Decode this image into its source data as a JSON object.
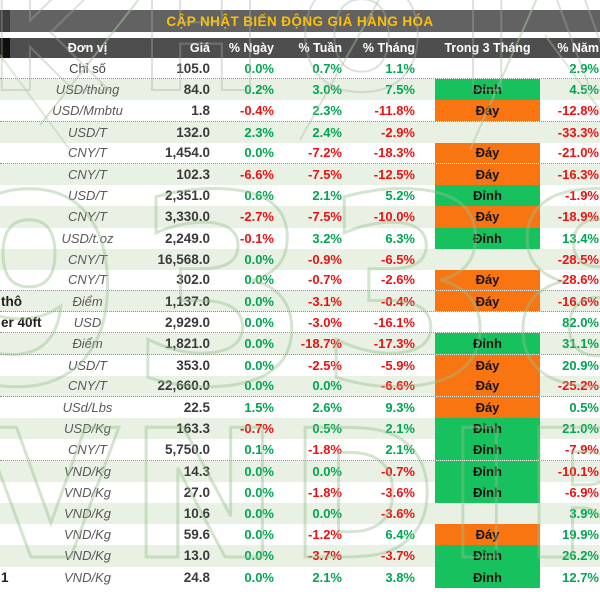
{
  "title": "CẬP NHẬT BIẾN ĐỘNG GIÁ HÀNG HÓA",
  "watermark": {
    "top": "KHOIV2",
    "middle": "933852",
    "bottom": "VNDIREC"
  },
  "colors": {
    "title_text": "#ffc000",
    "title_bg": "#626262",
    "header_bg": "#4e4e4e",
    "stripe_bg": "#e9f1e4",
    "positive": "#00a651",
    "negative": "#ee1111",
    "peak_bg": "#17c25e",
    "bottom_bg": "#f87512"
  },
  "chart_data": {
    "type": "table",
    "title": "CẬP NHẬT BIẾN ĐỘNG GIÁ HÀNG HÓA",
    "columns": [
      "Đơn vị",
      "Giá",
      "% Ngày",
      "% Tuần",
      "% Tháng",
      "Trong 3 Tháng",
      "% Năm"
    ],
    "signal_values": {
      "peak": "Đỉnh",
      "bottom": "Đáy"
    },
    "rows": [
      {
        "name": "",
        "unit": "Chỉ số",
        "price": "105.0",
        "day": "0.0%",
        "week": "0.7%",
        "month": "1.1%",
        "signal": "",
        "year": "2.9%",
        "group_end": true
      },
      {
        "name": "",
        "unit": "USD/thùng",
        "price": "84.0",
        "day": "0.2%",
        "week": "3.0%",
        "month": "7.5%",
        "signal": "Đỉnh",
        "year": "4.5%",
        "group_end": false
      },
      {
        "name": "",
        "unit": "USD/Mmbtu",
        "price": "1.8",
        "day": "-0.4%",
        "week": "2.3%",
        "month": "-11.8%",
        "signal": "Đáy",
        "year": "-12.8%",
        "group_end": true
      },
      {
        "name": "",
        "unit": "USD/T",
        "price": "132.0",
        "day": "2.3%",
        "week": "2.4%",
        "month": "-2.9%",
        "signal": "",
        "year": "-33.3%",
        "group_end": false
      },
      {
        "name": "",
        "unit": "CNY/T",
        "price": "1,454.0",
        "day": "0.0%",
        "week": "-7.2%",
        "month": "-18.3%",
        "signal": "Đáy",
        "year": "-21.0%",
        "group_end": true
      },
      {
        "name": "",
        "unit": "CNY/T",
        "price": "102.3",
        "day": "-6.6%",
        "week": "-7.5%",
        "month": "-12.5%",
        "signal": "Đáy",
        "year": "-16.3%",
        "group_end": false
      },
      {
        "name": "",
        "unit": "USD/T",
        "price": "2,351.0",
        "day": "0.6%",
        "week": "2.1%",
        "month": "5.2%",
        "signal": "Đỉnh",
        "year": "-1.9%",
        "group_end": false
      },
      {
        "name": "",
        "unit": "CNY/T",
        "price": "3,330.0",
        "day": "-2.7%",
        "week": "-7.5%",
        "month": "-10.0%",
        "signal": "Đáy",
        "year": "-18.9%",
        "group_end": false
      },
      {
        "name": "",
        "unit": "USD/t.oz",
        "price": "2,249.0",
        "day": "-0.1%",
        "week": "3.2%",
        "month": "6.3%",
        "signal": "Đỉnh",
        "year": "13.4%",
        "group_end": false
      },
      {
        "name": "",
        "unit": "CNY/T",
        "price": "16,568.0",
        "day": "0.0%",
        "week": "-0.9%",
        "month": "-6.5%",
        "signal": "",
        "year": "-28.5%",
        "group_end": false
      },
      {
        "name": "",
        "unit": "CNY/T",
        "price": "302.0",
        "day": "0.0%",
        "week": "-0.7%",
        "month": "-2.6%",
        "signal": "Đáy",
        "year": "-28.6%",
        "group_end": true
      },
      {
        "name": "thô",
        "unit": "Điểm",
        "price": "1,137.0",
        "day": "0.0%",
        "week": "-3.1%",
        "month": "-0.4%",
        "signal": "Đáy",
        "year": "-16.6%",
        "group_end": true
      },
      {
        "name": "er 40ft",
        "unit": "USD",
        "price": "2,929.0",
        "day": "0.0%",
        "week": "-3.0%",
        "month": "-16.1%",
        "signal": "",
        "year": "82.0%",
        "group_end": true
      },
      {
        "name": "",
        "unit": "Điểm",
        "price": "1,821.0",
        "day": "0.0%",
        "week": "-18.7%",
        "month": "-17.3%",
        "signal": "Đỉnh",
        "year": "31.1%",
        "group_end": true
      },
      {
        "name": "",
        "unit": "USD/T",
        "price": "353.0",
        "day": "0.0%",
        "week": "-2.5%",
        "month": "-5.9%",
        "signal": "Đáy",
        "year": "20.9%",
        "group_end": false
      },
      {
        "name": "",
        "unit": "CNY/T",
        "price": "22,660.0",
        "day": "0.0%",
        "week": "0.0%",
        "month": "-6.6%",
        "signal": "Đáy",
        "year": "-25.2%",
        "group_end": true
      },
      {
        "name": "",
        "unit": "USd/Lbs",
        "price": "22.5",
        "day": "1.5%",
        "week": "2.6%",
        "month": "9.3%",
        "signal": "Đáy",
        "year": "0.5%",
        "group_end": false
      },
      {
        "name": "",
        "unit": "USD/Kg",
        "price": "163.3",
        "day": "-0.7%",
        "week": "0.5%",
        "month": "2.1%",
        "signal": "Đỉnh",
        "year": "21.0%",
        "group_end": false
      },
      {
        "name": "",
        "unit": "CNY/T",
        "price": "5,750.0",
        "day": "0.1%",
        "week": "-1.8%",
        "month": "2.1%",
        "signal": "Đỉnh",
        "year": "-7.9%",
        "group_end": true
      },
      {
        "name": "",
        "unit": "VND/Kg",
        "price": "14.3",
        "day": "0.0%",
        "week": "0.0%",
        "month": "-0.7%",
        "signal": "Đỉnh",
        "year": "-10.1%",
        "group_end": false
      },
      {
        "name": "",
        "unit": "VND/Kg",
        "price": "27.0",
        "day": "0.0%",
        "week": "-1.8%",
        "month": "-3.6%",
        "signal": "Đỉnh",
        "year": "-6.9%",
        "group_end": false
      },
      {
        "name": "",
        "unit": "VND/Kg",
        "price": "10.6",
        "day": "0.0%",
        "week": "0.0%",
        "month": "-3.6%",
        "signal": "",
        "year": "3.9%",
        "group_end": false
      },
      {
        "name": "",
        "unit": "VND/Kg",
        "price": "59.6",
        "day": "0.0%",
        "week": "-1.2%",
        "month": "6.4%",
        "signal": "Đáy",
        "year": "19.9%",
        "group_end": false
      },
      {
        "name": "",
        "unit": "VND/Kg",
        "price": "13.0",
        "day": "0.0%",
        "week": "-3.7%",
        "month": "-3.7%",
        "signal": "Đỉnh",
        "year": "26.2%",
        "group_end": false
      },
      {
        "name": "1",
        "unit": "VND/Kg",
        "price": "24.8",
        "day": "0.0%",
        "week": "2.1%",
        "month": "3.8%",
        "signal": "Đỉnh",
        "year": "12.7%",
        "group_end": false
      }
    ]
  }
}
